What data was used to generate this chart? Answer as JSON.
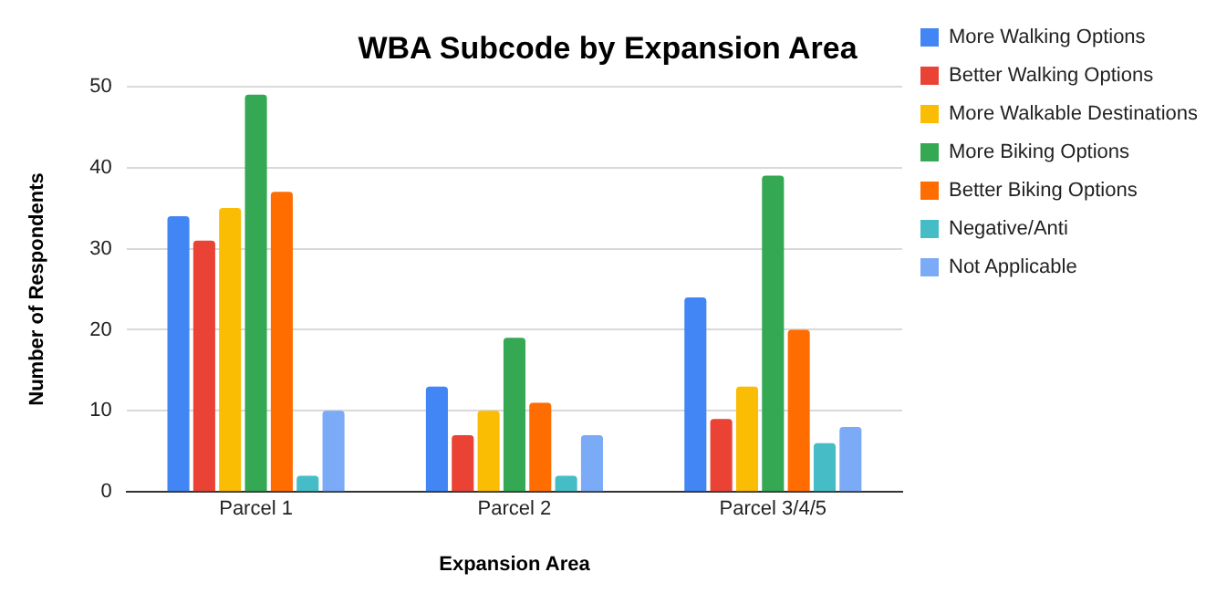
{
  "chart_data": {
    "type": "bar",
    "title": "WBA Subcode by Expansion Area",
    "xlabel": "Expansion Area",
    "ylabel": "Number of Respondents",
    "categories": [
      "Parcel 1",
      "Parcel 2",
      "Parcel 3/4/5"
    ],
    "series": [
      {
        "name": "More Walking Options",
        "color": "#4285f4",
        "values": [
          34,
          13,
          24
        ]
      },
      {
        "name": "Better Walking Options",
        "color": "#ea4335",
        "values": [
          31,
          7,
          9
        ]
      },
      {
        "name": "More Walkable Destinations",
        "color": "#fbbc04",
        "values": [
          35,
          10,
          13
        ]
      },
      {
        "name": "More Biking Options",
        "color": "#34a853",
        "values": [
          49,
          19,
          39
        ]
      },
      {
        "name": "Better Biking Options",
        "color": "#ff6d01",
        "values": [
          37,
          11,
          20
        ]
      },
      {
        "name": "Negative/Anti",
        "color": "#46bdc6",
        "values": [
          2,
          2,
          6
        ]
      },
      {
        "name": "Not Applicable",
        "color": "#7baaf7",
        "values": [
          10,
          7,
          8
        ]
      }
    ],
    "ylim": [
      0,
      50
    ],
    "yticks": [
      0,
      10,
      20,
      30,
      40,
      50
    ],
    "grid": "y",
    "legend": "right"
  }
}
